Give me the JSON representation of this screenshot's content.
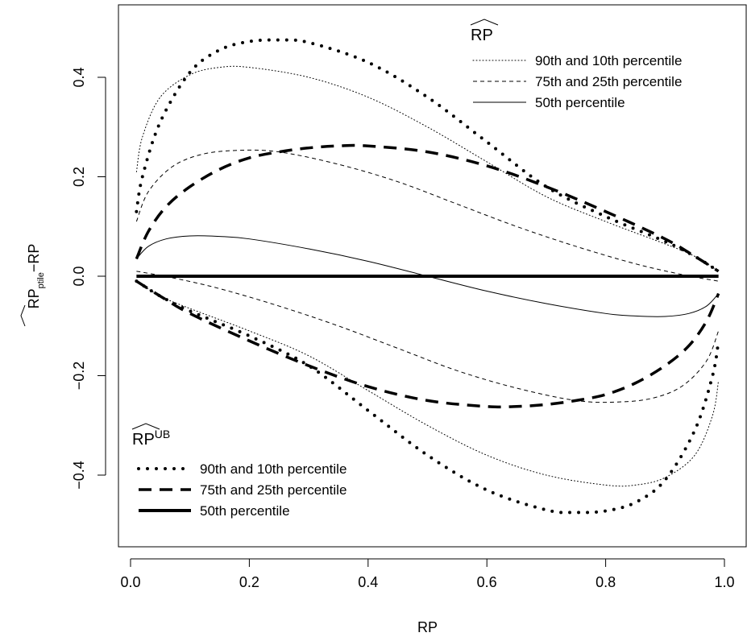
{
  "chart_data": {
    "type": "line",
    "title": "",
    "xlabel": "RP",
    "ylabel": {
      "main": "RP",
      "subscript": "ptile",
      "suffix": "−RP"
    },
    "xlim": [
      0.0,
      1.0
    ],
    "ylim": [
      -0.53,
      0.53
    ],
    "x_ticks": [
      0.0,
      0.2,
      0.4,
      0.6,
      0.8,
      1.0
    ],
    "x_tick_labels": [
      "0.0",
      "0.2",
      "0.4",
      "0.6",
      "0.8",
      "1.0"
    ],
    "y_ticks": [
      -0.4,
      -0.2,
      0.0,
      0.2,
      0.4
    ],
    "y_tick_labels": [
      "−0.4",
      "−0.2",
      "0.0",
      "0.2",
      "0.4"
    ],
    "grid": false,
    "legends": [
      {
        "placement": "top-right",
        "title_main": "RP",
        "title_sup": "",
        "entries": [
          {
            "label": "90th and 10th percentile",
            "style": "thin-dotted"
          },
          {
            "label": "75th and 25th percentile",
            "style": "thin-dashed"
          },
          {
            "label": "50th percentile",
            "style": "thin-solid"
          }
        ]
      },
      {
        "placement": "bottom-left",
        "title_main": "RP",
        "title_sup": "UB",
        "entries": [
          {
            "label": "90th and 10th percentile",
            "style": "thick-dotted"
          },
          {
            "label": "75th and 25th percentile",
            "style": "thick-dashed"
          },
          {
            "label": "50th percentile",
            "style": "thick-solid"
          }
        ]
      }
    ],
    "series": [
      {
        "style": "thin-dotted",
        "x": [
          0.01,
          0.02,
          0.05,
          0.1,
          0.15,
          0.2,
          0.3,
          0.4,
          0.5,
          0.6,
          0.7,
          0.8,
          0.9,
          0.95,
          0.99
        ],
        "y": [
          0.21,
          0.28,
          0.36,
          0.405,
          0.42,
          0.42,
          0.4,
          0.36,
          0.3,
          0.23,
          0.16,
          0.11,
          0.065,
          0.04,
          0.01
        ]
      },
      {
        "style": "thin-dotted",
        "x": [
          0.01,
          0.05,
          0.1,
          0.2,
          0.3,
          0.4,
          0.5,
          0.6,
          0.7,
          0.8,
          0.85,
          0.9,
          0.95,
          0.98,
          0.99
        ],
        "y": [
          -0.01,
          -0.04,
          -0.065,
          -0.11,
          -0.16,
          -0.23,
          -0.3,
          -0.36,
          -0.4,
          -0.42,
          -0.42,
          -0.405,
          -0.36,
          -0.28,
          -0.21
        ]
      },
      {
        "style": "thin-dashed",
        "x": [
          0.01,
          0.03,
          0.07,
          0.12,
          0.18,
          0.25,
          0.35,
          0.45,
          0.55,
          0.65,
          0.75,
          0.85,
          0.93,
          0.99
        ],
        "y": [
          0.11,
          0.17,
          0.22,
          0.245,
          0.253,
          0.25,
          0.225,
          0.19,
          0.145,
          0.1,
          0.06,
          0.025,
          0.003,
          -0.01
        ]
      },
      {
        "style": "thin-dashed",
        "x": [
          0.01,
          0.07,
          0.15,
          0.25,
          0.35,
          0.45,
          0.55,
          0.65,
          0.75,
          0.82,
          0.88,
          0.93,
          0.97,
          0.99
        ],
        "y": [
          0.01,
          -0.003,
          -0.025,
          -0.06,
          -0.1,
          -0.145,
          -0.19,
          -0.225,
          -0.25,
          -0.253,
          -0.245,
          -0.22,
          -0.17,
          -0.11
        ]
      },
      {
        "style": "thin-solid",
        "x": [
          0.01,
          0.03,
          0.06,
          0.1,
          0.15,
          0.2,
          0.3,
          0.4,
          0.5,
          0.6,
          0.7,
          0.8,
          0.85,
          0.9,
          0.94,
          0.97,
          0.99
        ],
        "y": [
          0.035,
          0.06,
          0.075,
          0.081,
          0.08,
          0.075,
          0.055,
          0.03,
          0.0,
          -0.03,
          -0.055,
          -0.075,
          -0.08,
          -0.081,
          -0.075,
          -0.06,
          -0.035
        ]
      },
      {
        "style": "thick-dotted",
        "x": [
          0.01,
          0.02,
          0.05,
          0.1,
          0.15,
          0.2,
          0.25,
          0.3,
          0.4,
          0.5,
          0.6,
          0.7,
          0.8,
          0.9,
          0.95,
          0.99
        ],
        "y": [
          0.13,
          0.2,
          0.31,
          0.41,
          0.455,
          0.472,
          0.475,
          0.47,
          0.43,
          0.36,
          0.27,
          0.18,
          0.12,
          0.07,
          0.04,
          0.01
        ]
      },
      {
        "style": "thick-dotted",
        "x": [
          0.01,
          0.05,
          0.1,
          0.2,
          0.3,
          0.4,
          0.5,
          0.6,
          0.7,
          0.75,
          0.8,
          0.85,
          0.9,
          0.95,
          0.98,
          0.99
        ],
        "y": [
          -0.01,
          -0.04,
          -0.07,
          -0.12,
          -0.18,
          -0.27,
          -0.36,
          -0.43,
          -0.47,
          -0.475,
          -0.472,
          -0.455,
          -0.41,
          -0.31,
          -0.2,
          -0.13
        ]
      },
      {
        "style": "thick-dashed",
        "x": [
          0.01,
          0.03,
          0.06,
          0.1,
          0.15,
          0.2,
          0.25,
          0.3,
          0.35,
          0.4,
          0.5,
          0.6,
          0.7,
          0.8,
          0.9,
          0.95,
          0.99
        ],
        "y": [
          0.035,
          0.09,
          0.14,
          0.18,
          0.215,
          0.238,
          0.25,
          0.258,
          0.262,
          0.262,
          0.25,
          0.222,
          0.18,
          0.13,
          0.075,
          0.04,
          0.01
        ]
      },
      {
        "style": "thick-dashed",
        "x": [
          0.01,
          0.05,
          0.1,
          0.2,
          0.3,
          0.4,
          0.5,
          0.6,
          0.65,
          0.7,
          0.75,
          0.8,
          0.85,
          0.9,
          0.94,
          0.97,
          0.99
        ],
        "y": [
          -0.01,
          -0.04,
          -0.075,
          -0.13,
          -0.18,
          -0.222,
          -0.25,
          -0.262,
          -0.262,
          -0.258,
          -0.25,
          -0.238,
          -0.215,
          -0.18,
          -0.14,
          -0.09,
          -0.035
        ]
      },
      {
        "style": "thick-solid",
        "x": [
          0.01,
          0.99
        ],
        "y": [
          0.0,
          0.0
        ]
      }
    ]
  }
}
